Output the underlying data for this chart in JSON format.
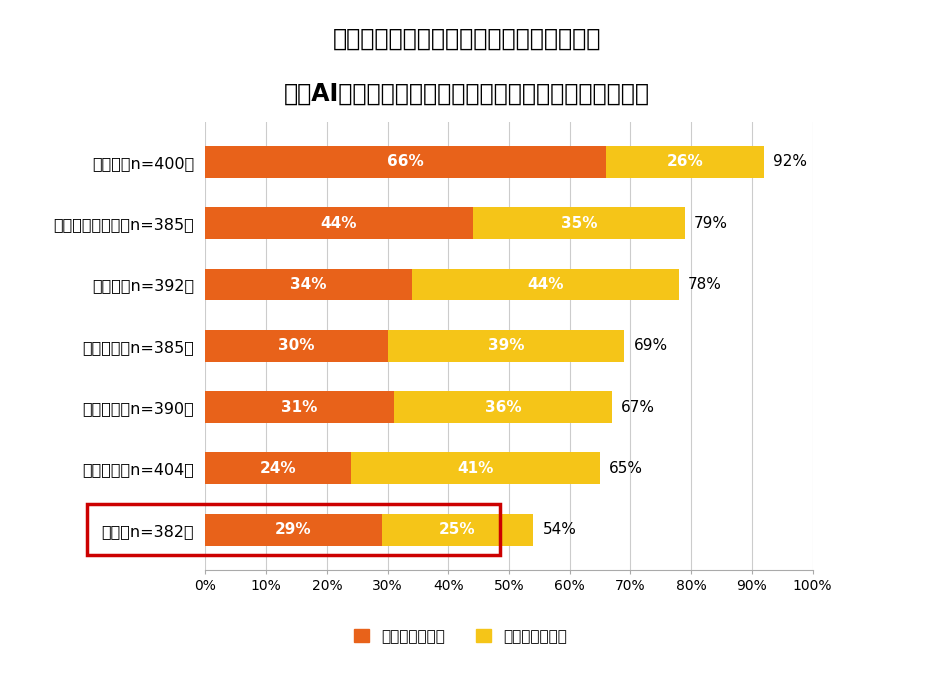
{
  "title_line1": "あなたの企業におけるマーケティングでの",
  "title_line2": "生成AI活用状況を教えてください。　（他国との比較）",
  "categories": [
    "インド（n=400）",
    "オーストラリア（n=385）",
    "ドイツ（n=392）",
    "イギリス（n=385）",
    "フランス（n=390）",
    "アメリカ（n=404）",
    "日本（n=382）"
  ],
  "daily_values": [
    66,
    44,
    34,
    30,
    31,
    24,
    29
  ],
  "experimental_values": [
    26,
    35,
    44,
    39,
    36,
    41,
    25
  ],
  "total_labels": [
    "92%",
    "79%",
    "78%",
    "69%",
    "67%",
    "65%",
    "54%"
  ],
  "daily_color": "#E8621A",
  "experimental_color": "#F5C518",
  "legend_daily": "日常的に活用中",
  "legend_experimental": "実験的に活用中",
  "highlight_index": 6,
  "highlight_color": "#CC0000",
  "background_color": "#FFFFFF",
  "bar_height": 0.52,
  "xlim": [
    0,
    100
  ],
  "xticks": [
    0,
    10,
    20,
    30,
    40,
    50,
    60,
    70,
    80,
    90,
    100
  ],
  "xtick_labels": [
    "0%",
    "10%",
    "20%",
    "30%",
    "40%",
    "50%",
    "60%",
    "70%",
    "80%",
    "90%",
    "100%"
  ],
  "title_fontsize": 17,
  "label_fontsize": 11.5,
  "tick_fontsize": 10,
  "legend_fontsize": 11,
  "bar_text_fontsize": 11,
  "total_text_fontsize": 11
}
